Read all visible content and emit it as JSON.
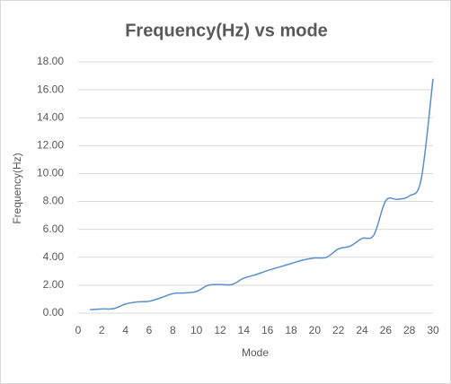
{
  "chart_data": {
    "type": "line",
    "title": "Frequency(Hz) vs mode",
    "x_label": "Mode",
    "y_label": "Frequency(Hz)",
    "x": [
      1,
      2,
      3,
      4,
      5,
      6,
      7,
      8,
      9,
      10,
      11,
      12,
      13,
      14,
      15,
      16,
      17,
      18,
      19,
      20,
      21,
      22,
      23,
      24,
      25,
      26,
      27,
      28,
      29,
      30
    ],
    "series": [
      {
        "name": "Frequency(Hz)",
        "color": "#5b8fcc",
        "values": [
          0.25,
          0.3,
          0.32,
          0.65,
          0.8,
          0.85,
          1.1,
          1.4,
          1.45,
          1.55,
          2.0,
          2.05,
          2.05,
          2.5,
          2.75,
          3.05,
          3.3,
          3.55,
          3.8,
          3.95,
          4.0,
          4.6,
          4.8,
          5.35,
          5.6,
          8.05,
          8.15,
          8.4,
          9.6,
          16.8
        ]
      }
    ],
    "xlim": [
      0,
      30
    ],
    "xticks": [
      0,
      2,
      4,
      6,
      8,
      10,
      12,
      14,
      16,
      18,
      20,
      22,
      24,
      26,
      28,
      30
    ],
    "ylim": [
      0,
      18
    ],
    "yticks": [
      {
        "value": 0,
        "label": "0.00"
      },
      {
        "value": 2,
        "label": "2.00"
      },
      {
        "value": 4,
        "label": "4.00"
      },
      {
        "value": 6,
        "label": "6.00"
      },
      {
        "value": 8,
        "label": "8.00"
      },
      {
        "value": 10,
        "label": "10.00"
      },
      {
        "value": 12,
        "label": "12.00"
      },
      {
        "value": 14,
        "label": "14.00"
      },
      {
        "value": 16,
        "label": "16.00"
      },
      {
        "value": 18,
        "label": "18.00"
      }
    ],
    "grid": true,
    "smooth": true
  }
}
